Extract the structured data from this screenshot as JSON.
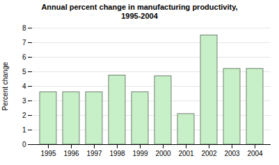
{
  "chart_data": {
    "type": "bar",
    "title": "Annual percent change in manufacturing productivity,\n1995-2004",
    "y_label": "Percent change",
    "categories": [
      "1995",
      "1996",
      "1997",
      "1998",
      "1999",
      "2000",
      "2001",
      "2002",
      "2003",
      "2004"
    ],
    "values": [
      3.6,
      3.6,
      3.6,
      4.75,
      3.6,
      4.7,
      2.1,
      7.5,
      5.2,
      5.2
    ],
    "color": "#c8f0c8",
    "ylim": [
      0,
      8
    ],
    "yticks": [
      0,
      1,
      2,
      3,
      4,
      5,
      6,
      7,
      8
    ],
    "grid": true
  }
}
